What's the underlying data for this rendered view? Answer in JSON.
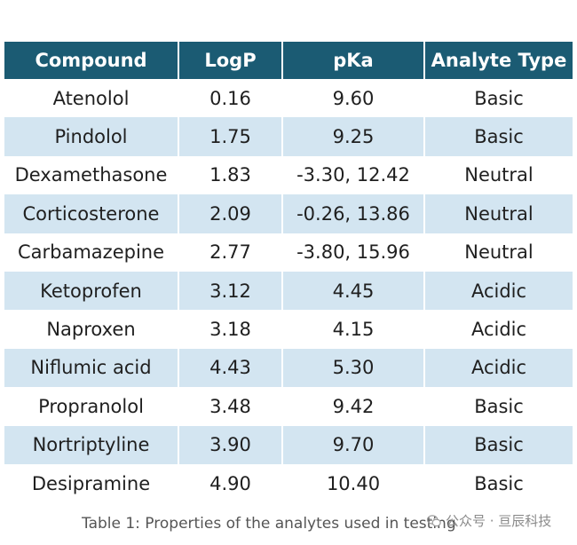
{
  "table": {
    "headers": [
      "Compound",
      "LogP",
      "pKa",
      "Analyte Type"
    ],
    "rows": [
      [
        "Atenolol",
        "0.16",
        "9.60",
        "Basic"
      ],
      [
        "Pindolol",
        "1.75",
        "9.25",
        "Basic"
      ],
      [
        "Dexamethasone",
        "1.83",
        "-3.30, 12.42",
        "Neutral"
      ],
      [
        "Corticosterone",
        "2.09",
        "-0.26, 13.86",
        "Neutral"
      ],
      [
        "Carbamazepine",
        "2.77",
        "-3.80, 15.96",
        "Neutral"
      ],
      [
        "Ketoprofen",
        "3.12",
        "4.45",
        "Acidic"
      ],
      [
        "Naproxen",
        "3.18",
        "4.15",
        "Acidic"
      ],
      [
        "Niflumic acid",
        "4.43",
        "5.30",
        "Acidic"
      ],
      [
        "Propranolol",
        "3.48",
        "9.42",
        "Basic"
      ],
      [
        "Nortriptyline",
        "3.90",
        "9.70",
        "Basic"
      ],
      [
        "Desipramine",
        "4.90",
        "10.40",
        "Basic"
      ]
    ]
  },
  "caption": "Table 1: Properties of the analytes used in testing",
  "watermark": {
    "icon": "wechat-icon",
    "text": "公众号 · 亘辰科技"
  },
  "colors": {
    "header_bg": "#1b5b73",
    "header_text": "#ffffff",
    "stripe_bg": "#d3e5f1",
    "body_text": "#1f1f1f"
  }
}
